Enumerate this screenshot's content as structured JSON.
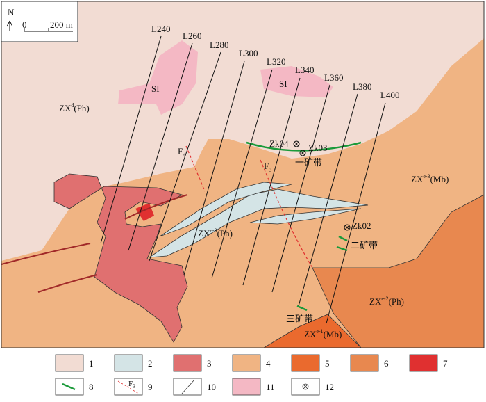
{
  "header": {
    "north": "N",
    "scale_zero": "0",
    "scale_length": "200 m"
  },
  "survey_lines": [
    "L240",
    "L260",
    "L280",
    "L300",
    "L320",
    "L340",
    "L360",
    "L380",
    "L400"
  ],
  "units": {
    "pink_1": "SI",
    "pink_2": "SI",
    "zx_d": {
      "base": "ZX",
      "sup": "d",
      "rest": "(Ph)"
    },
    "zx_e3_mb": {
      "base": "ZX",
      "sup": "e-3",
      "rest": "(Mb)"
    },
    "zx_e3_ph": {
      "base": "ZX",
      "sup": "e-3",
      "rest": "(Ph)"
    },
    "zx_e2_ph": {
      "base": "ZX",
      "sup": "e-2",
      "rest": "(Ph)"
    },
    "zx_e1_mb": {
      "base": "ZX",
      "sup": "e-1",
      "rest": "(Mb)"
    }
  },
  "faults": {
    "f4": {
      "base": "F",
      "sub": "4"
    },
    "f3": {
      "base": "F",
      "sub": "3"
    }
  },
  "boreholes": [
    "Zk04",
    "Zk03",
    "Zk02"
  ],
  "ore_belts": [
    "一矿带",
    "二矿带",
    "三矿带"
  ],
  "legend": {
    "items": [
      "1",
      "2",
      "3",
      "4",
      "5",
      "6",
      "7",
      "8",
      "9",
      "10",
      "11",
      "12"
    ],
    "fault_label": {
      "base": "F",
      "sub": "3"
    }
  }
}
